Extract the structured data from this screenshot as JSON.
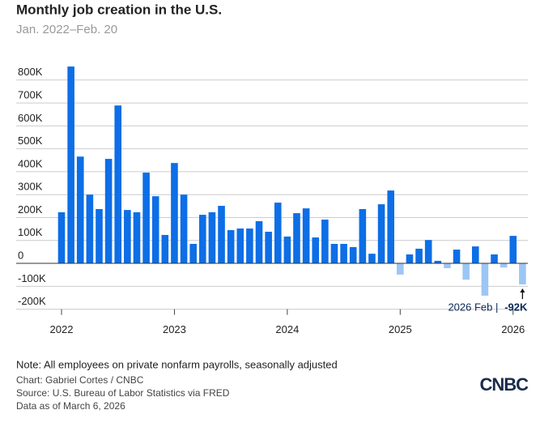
{
  "chart_data": {
    "type": "bar",
    "title": "Monthly job creation in the U.S.",
    "subtitle": "Jan. 2022–Feb. 20",
    "categories": [
      "2022",
      null,
      null,
      null,
      null,
      null,
      null,
      null,
      null,
      null,
      null,
      null,
      "2023",
      null,
      null,
      null,
      null,
      null,
      null,
      null,
      null,
      null,
      null,
      null,
      "2024",
      null,
      null,
      null,
      null,
      null,
      null,
      null,
      null,
      null,
      null,
      null,
      "2025",
      null,
      null,
      null,
      null,
      null,
      null,
      null,
      null,
      null,
      null,
      null,
      "2026",
      null
    ],
    "values": [
      223,
      859,
      466,
      300,
      237,
      456,
      689,
      233,
      223,
      396,
      293,
      124,
      438,
      300,
      85,
      212,
      223,
      251,
      145,
      152,
      152,
      184,
      138,
      265,
      117,
      219,
      240,
      113,
      191,
      85,
      85,
      71,
      237,
      42,
      258,
      318,
      -49,
      39,
      64,
      102,
      11,
      -21,
      60,
      -71,
      74,
      -141,
      39,
      -18,
      120,
      -92
    ],
    "value_labels": [
      null,
      null,
      null,
      null,
      null,
      null,
      null,
      null,
      null,
      null,
      null,
      null,
      null,
      null,
      null,
      null,
      null,
      null,
      null,
      null,
      null,
      null,
      null,
      null,
      null,
      null,
      null,
      null,
      null,
      null,
      null,
      null,
      null,
      null,
      null,
      null,
      null,
      null,
      null,
      null,
      null,
      null,
      null,
      null,
      null,
      null,
      null,
      null,
      null,
      "-92K"
    ],
    "annotation": "2026 Feb |",
    "color": "#0d6ee6",
    "negative_color": "#9cc6f5",
    "ylim": [
      -200,
      870
    ],
    "yticks": [
      {
        "value": -200,
        "label": "-200K"
      },
      {
        "value": -100,
        "label": "-100K"
      },
      0,
      {
        "value": 100,
        "label": "100K"
      },
      {
        "value": 200,
        "label": "200K"
      },
      {
        "value": 300,
        "label": "300K"
      },
      {
        "value": 400,
        "label": "400K"
      },
      {
        "value": 500,
        "label": "500K"
      },
      {
        "value": 600,
        "label": "600K"
      },
      {
        "value": 700,
        "label": "700K"
      },
      {
        "value": 800,
        "label": "800K"
      }
    ],
    "grid": true,
    "note": "Note: All employees on private nonfarm payrolls, seasonally adjusted",
    "credit": "Chart: Gabriel Cortes / CNBC",
    "source": "Source: U.S. Bureau of Labor Statistics via FRED",
    "date": "Data as of March 6, 2026",
    "logo": "CNBC"
  }
}
